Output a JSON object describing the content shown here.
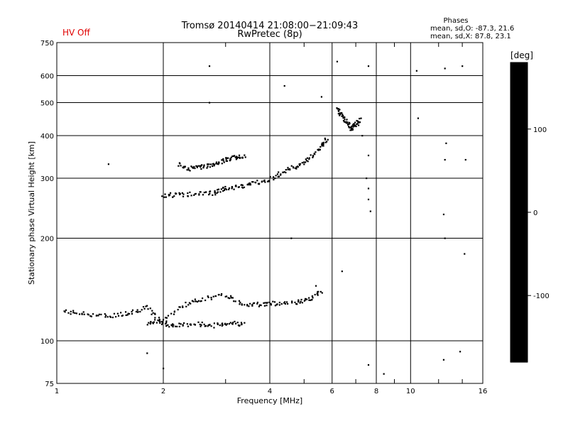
{
  "status": {
    "label": "HV Off",
    "color": "#e00000"
  },
  "header": {
    "title_line1": "Tromsø 20140414 21:08:00−21:09:43",
    "title_line2": "RwPretec (8p)"
  },
  "stats": {
    "heading": "Phases",
    "line_o": "mean, sd,O:  -87.3, 21.6",
    "line_x": "mean, sd,X:  87.8, 23.1"
  },
  "colorbar": {
    "label": "[deg]",
    "range": [
      -180,
      180
    ],
    "ticks": [
      "100",
      "0",
      "-100"
    ]
  },
  "chart_data": {
    "type": "scatter",
    "xlabel": "Frequency [MHz]",
    "ylabel": "Stationary phase Virtual Height [km]",
    "x_scale": "log",
    "y_scale": "log",
    "xlim": [
      1,
      16
    ],
    "ylim": [
      75,
      750
    ],
    "x_ticks": [
      "1",
      "2",
      "4",
      "6",
      "8",
      "10",
      "16"
    ],
    "y_ticks": [
      "75",
      "100",
      "200",
      "300",
      "400",
      "500",
      "600",
      "750"
    ],
    "grid": true,
    "traces": [
      {
        "description": "O-trace F1 lower",
        "x": [
          1.05,
          1.2,
          1.4,
          1.6,
          1.8,
          2.0,
          2.2,
          2.5,
          2.8,
          3.1,
          3.4
        ],
        "h": [
          122,
          120,
          118,
          121,
          125,
          112,
          111,
          112,
          111,
          113,
          112
        ],
        "phase": -95
      },
      {
        "description": "E/F band",
        "x": [
          1.8,
          2.0,
          2.3,
          2.6,
          3.0,
          3.4,
          3.8,
          4.2,
          4.8,
          5.2,
          5.6
        ],
        "h": [
          112,
          115,
          128,
          133,
          136,
          128,
          128,
          129,
          130,
          132,
          140
        ],
        "phase": -110
      },
      {
        "description": "F2 O-trace",
        "x": [
          2.0,
          2.2,
          2.5,
          2.8,
          3.0,
          3.3,
          3.6,
          4.0,
          4.4,
          4.8,
          5.2,
          5.6,
          5.8
        ],
        "h": [
          268,
          268,
          270,
          272,
          280,
          283,
          290,
          298,
          315,
          325,
          345,
          370,
          395
        ],
        "phase": -105
      },
      {
        "description": "upper trace",
        "x": [
          2.2,
          2.4,
          2.6,
          2.8,
          3.0,
          3.2,
          3.4
        ],
        "h": [
          330,
          320,
          325,
          330,
          340,
          345,
          350
        ],
        "phase": -70
      },
      {
        "description": "spread F",
        "x": [
          6.2,
          6.4,
          6.6,
          6.8,
          7.0,
          7.2
        ],
        "h": [
          480,
          460,
          440,
          420,
          430,
          450
        ],
        "phase": 90
      }
    ],
    "scatter_points": [
      {
        "x": 2.7,
        "h": 640,
        "phase": 110
      },
      {
        "x": 4.4,
        "h": 560,
        "phase": 100
      },
      {
        "x": 5.6,
        "h": 520,
        "phase": 120
      },
      {
        "x": 6.2,
        "h": 660,
        "phase": -110
      },
      {
        "x": 7.6,
        "h": 640,
        "phase": 120
      },
      {
        "x": 10.4,
        "h": 620,
        "phase": -120
      },
      {
        "x": 12.5,
        "h": 630,
        "phase": 110
      },
      {
        "x": 14.0,
        "h": 640,
        "phase": 130
      },
      {
        "x": 1.4,
        "h": 330,
        "phase": 100
      },
      {
        "x": 2.7,
        "h": 500,
        "phase": -20
      },
      {
        "x": 10.5,
        "h": 450,
        "phase": 140
      },
      {
        "x": 12.6,
        "h": 380,
        "phase": -30
      },
      {
        "x": 12.5,
        "h": 340,
        "phase": 120
      },
      {
        "x": 14.3,
        "h": 340,
        "phase": -120
      },
      {
        "x": 12.4,
        "h": 235,
        "phase": -170
      },
      {
        "x": 12.5,
        "h": 200,
        "phase": -150
      },
      {
        "x": 14.2,
        "h": 180,
        "phase": -20
      },
      {
        "x": 1.8,
        "h": 92,
        "phase": 110
      },
      {
        "x": 2.0,
        "h": 83,
        "phase": -90
      },
      {
        "x": 7.6,
        "h": 85,
        "phase": -170
      },
      {
        "x": 8.4,
        "h": 80,
        "phase": 40
      },
      {
        "x": 12.4,
        "h": 88,
        "phase": -110
      },
      {
        "x": 13.8,
        "h": 93,
        "phase": -140
      },
      {
        "x": 4.6,
        "h": 200,
        "phase": 120
      },
      {
        "x": 5.4,
        "h": 145,
        "phase": 80
      },
      {
        "x": 6.4,
        "h": 160,
        "phase": 130
      },
      {
        "x": 7.6,
        "h": 280,
        "phase": -60
      },
      {
        "x": 7.6,
        "h": 260,
        "phase": -80
      },
      {
        "x": 7.7,
        "h": 240,
        "phase": -40
      },
      {
        "x": 7.5,
        "h": 300,
        "phase": -100
      },
      {
        "x": 7.6,
        "h": 350,
        "phase": -110
      },
      {
        "x": 7.3,
        "h": 400,
        "phase": 100
      }
    ]
  }
}
